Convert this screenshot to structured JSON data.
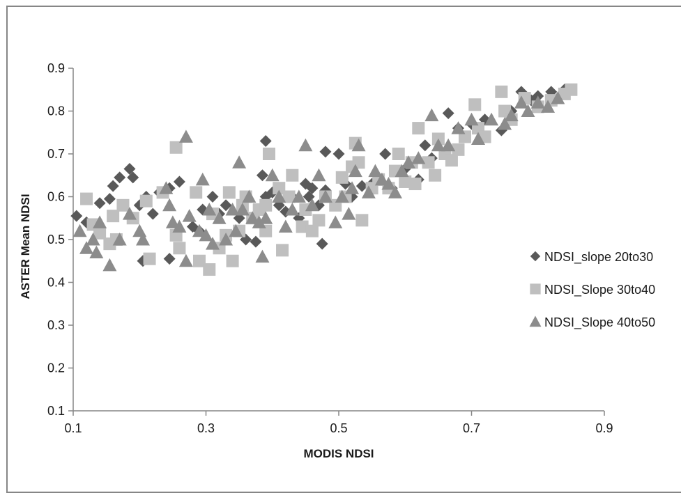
{
  "chart_data": {
    "type": "scatter",
    "title": "",
    "xlabel": "MODIS NDSI",
    "ylabel": "ASTER Mean NDSI",
    "xlim": [
      0.1,
      0.9
    ],
    "ylim": [
      0.1,
      0.9
    ],
    "x_ticks": [
      "0.1",
      "0.3",
      "0.5",
      "0.7",
      "0.9"
    ],
    "y_ticks": [
      "0.1",
      "0.2",
      "0.3",
      "0.4",
      "0.5",
      "0.6",
      "0.7",
      "0.8",
      "0.9"
    ],
    "grid": false,
    "legend_position": "right",
    "series": [
      {
        "name": "NDSI_slope 20to30",
        "marker": "diamond",
        "color": "#595959",
        "points": [
          [
            0.105,
            0.555
          ],
          [
            0.12,
            0.54
          ],
          [
            0.14,
            0.585
          ],
          [
            0.155,
            0.595
          ],
          [
            0.16,
            0.625
          ],
          [
            0.17,
            0.645
          ],
          [
            0.185,
            0.665
          ],
          [
            0.19,
            0.645
          ],
          [
            0.2,
            0.58
          ],
          [
            0.21,
            0.6
          ],
          [
            0.22,
            0.56
          ],
          [
            0.23,
            0.61
          ],
          [
            0.245,
            0.62
          ],
          [
            0.26,
            0.635
          ],
          [
            0.205,
            0.45
          ],
          [
            0.245,
            0.455
          ],
          [
            0.28,
            0.53
          ],
          [
            0.29,
            0.52
          ],
          [
            0.295,
            0.57
          ],
          [
            0.31,
            0.6
          ],
          [
            0.32,
            0.56
          ],
          [
            0.33,
            0.58
          ],
          [
            0.35,
            0.55
          ],
          [
            0.36,
            0.5
          ],
          [
            0.375,
            0.495
          ],
          [
            0.385,
            0.65
          ],
          [
            0.39,
            0.73
          ],
          [
            0.39,
            0.6
          ],
          [
            0.4,
            0.61
          ],
          [
            0.41,
            0.58
          ],
          [
            0.42,
            0.565
          ],
          [
            0.43,
            0.6
          ],
          [
            0.44,
            0.55
          ],
          [
            0.45,
            0.63
          ],
          [
            0.455,
            0.6
          ],
          [
            0.46,
            0.62
          ],
          [
            0.47,
            0.58
          ],
          [
            0.475,
            0.49
          ],
          [
            0.48,
            0.705
          ],
          [
            0.48,
            0.615
          ],
          [
            0.5,
            0.7
          ],
          [
            0.51,
            0.63
          ],
          [
            0.52,
            0.6
          ],
          [
            0.535,
            0.625
          ],
          [
            0.55,
            0.63
          ],
          [
            0.57,
            0.7
          ],
          [
            0.58,
            0.62
          ],
          [
            0.6,
            0.665
          ],
          [
            0.62,
            0.64
          ],
          [
            0.63,
            0.72
          ],
          [
            0.64,
            0.69
          ],
          [
            0.665,
            0.795
          ],
          [
            0.68,
            0.76
          ],
          [
            0.7,
            0.77
          ],
          [
            0.72,
            0.78
          ],
          [
            0.745,
            0.755
          ],
          [
            0.76,
            0.8
          ],
          [
            0.775,
            0.845
          ],
          [
            0.79,
            0.825
          ],
          [
            0.8,
            0.835
          ],
          [
            0.82,
            0.845
          ],
          [
            0.83,
            0.83
          ],
          [
            0.84,
            0.85
          ],
          [
            0.845,
            0.85
          ]
        ]
      },
      {
        "name": "NDSI_Slope 30to40",
        "marker": "square",
        "color": "#bfbfbf",
        "points": [
          [
            0.12,
            0.595
          ],
          [
            0.13,
            0.535
          ],
          [
            0.14,
            0.515
          ],
          [
            0.155,
            0.49
          ],
          [
            0.16,
            0.555
          ],
          [
            0.165,
            0.5
          ],
          [
            0.175,
            0.58
          ],
          [
            0.19,
            0.55
          ],
          [
            0.21,
            0.59
          ],
          [
            0.215,
            0.455
          ],
          [
            0.235,
            0.61
          ],
          [
            0.255,
            0.715
          ],
          [
            0.26,
            0.48
          ],
          [
            0.255,
            0.51
          ],
          [
            0.285,
            0.61
          ],
          [
            0.29,
            0.45
          ],
          [
            0.305,
            0.43
          ],
          [
            0.31,
            0.56
          ],
          [
            0.32,
            0.48
          ],
          [
            0.33,
            0.51
          ],
          [
            0.335,
            0.61
          ],
          [
            0.34,
            0.45
          ],
          [
            0.35,
            0.52
          ],
          [
            0.355,
            0.58
          ],
          [
            0.36,
            0.6
          ],
          [
            0.37,
            0.55
          ],
          [
            0.38,
            0.57
          ],
          [
            0.39,
            0.52
          ],
          [
            0.39,
            0.58
          ],
          [
            0.395,
            0.7
          ],
          [
            0.41,
            0.62
          ],
          [
            0.415,
            0.475
          ],
          [
            0.425,
            0.6
          ],
          [
            0.43,
            0.65
          ],
          [
            0.445,
            0.53
          ],
          [
            0.45,
            0.57
          ],
          [
            0.46,
            0.52
          ],
          [
            0.47,
            0.545
          ],
          [
            0.48,
            0.6
          ],
          [
            0.495,
            0.58
          ],
          [
            0.505,
            0.645
          ],
          [
            0.51,
            0.6
          ],
          [
            0.52,
            0.67
          ],
          [
            0.525,
            0.725
          ],
          [
            0.53,
            0.68
          ],
          [
            0.535,
            0.545
          ],
          [
            0.55,
            0.62
          ],
          [
            0.56,
            0.64
          ],
          [
            0.575,
            0.62
          ],
          [
            0.585,
            0.66
          ],
          [
            0.59,
            0.7
          ],
          [
            0.6,
            0.635
          ],
          [
            0.61,
            0.68
          ],
          [
            0.615,
            0.63
          ],
          [
            0.62,
            0.76
          ],
          [
            0.635,
            0.68
          ],
          [
            0.645,
            0.65
          ],
          [
            0.65,
            0.735
          ],
          [
            0.66,
            0.7
          ],
          [
            0.67,
            0.685
          ],
          [
            0.68,
            0.71
          ],
          [
            0.69,
            0.74
          ],
          [
            0.705,
            0.815
          ],
          [
            0.71,
            0.76
          ],
          [
            0.72,
            0.74
          ],
          [
            0.745,
            0.845
          ],
          [
            0.75,
            0.8
          ],
          [
            0.76,
            0.78
          ],
          [
            0.78,
            0.83
          ],
          [
            0.8,
            0.81
          ],
          [
            0.82,
            0.825
          ],
          [
            0.84,
            0.84
          ],
          [
            0.85,
            0.85
          ]
        ]
      },
      {
        "name": "NDSI_Slope 40to50",
        "marker": "triangle",
        "color": "#8c8c8c",
        "points": [
          [
            0.11,
            0.52
          ],
          [
            0.12,
            0.48
          ],
          [
            0.13,
            0.5
          ],
          [
            0.135,
            0.47
          ],
          [
            0.14,
            0.54
          ],
          [
            0.155,
            0.44
          ],
          [
            0.17,
            0.5
          ],
          [
            0.185,
            0.56
          ],
          [
            0.2,
            0.52
          ],
          [
            0.205,
            0.5
          ],
          [
            0.24,
            0.62
          ],
          [
            0.245,
            0.58
          ],
          [
            0.25,
            0.54
          ],
          [
            0.26,
            0.53
          ],
          [
            0.27,
            0.74
          ],
          [
            0.27,
            0.45
          ],
          [
            0.275,
            0.555
          ],
          [
            0.29,
            0.52
          ],
          [
            0.295,
            0.64
          ],
          [
            0.3,
            0.51
          ],
          [
            0.305,
            0.57
          ],
          [
            0.31,
            0.49
          ],
          [
            0.32,
            0.55
          ],
          [
            0.33,
            0.5
          ],
          [
            0.34,
            0.57
          ],
          [
            0.345,
            0.52
          ],
          [
            0.35,
            0.68
          ],
          [
            0.355,
            0.57
          ],
          [
            0.365,
            0.6
          ],
          [
            0.37,
            0.55
          ],
          [
            0.38,
            0.54
          ],
          [
            0.385,
            0.46
          ],
          [
            0.39,
            0.55
          ],
          [
            0.4,
            0.65
          ],
          [
            0.41,
            0.6
          ],
          [
            0.42,
            0.53
          ],
          [
            0.43,
            0.57
          ],
          [
            0.44,
            0.6
          ],
          [
            0.45,
            0.72
          ],
          [
            0.46,
            0.58
          ],
          [
            0.47,
            0.65
          ],
          [
            0.48,
            0.6
          ],
          [
            0.495,
            0.54
          ],
          [
            0.505,
            0.6
          ],
          [
            0.515,
            0.56
          ],
          [
            0.52,
            0.62
          ],
          [
            0.525,
            0.66
          ],
          [
            0.53,
            0.72
          ],
          [
            0.545,
            0.61
          ],
          [
            0.555,
            0.66
          ],
          [
            0.565,
            0.64
          ],
          [
            0.575,
            0.63
          ],
          [
            0.585,
            0.61
          ],
          [
            0.595,
            0.66
          ],
          [
            0.605,
            0.68
          ],
          [
            0.62,
            0.69
          ],
          [
            0.64,
            0.79
          ],
          [
            0.65,
            0.72
          ],
          [
            0.665,
            0.72
          ],
          [
            0.68,
            0.76
          ],
          [
            0.7,
            0.78
          ],
          [
            0.71,
            0.735
          ],
          [
            0.73,
            0.78
          ],
          [
            0.75,
            0.77
          ],
          [
            0.76,
            0.79
          ],
          [
            0.775,
            0.82
          ],
          [
            0.785,
            0.8
          ],
          [
            0.8,
            0.82
          ],
          [
            0.815,
            0.81
          ],
          [
            0.83,
            0.83
          ]
        ]
      }
    ]
  }
}
